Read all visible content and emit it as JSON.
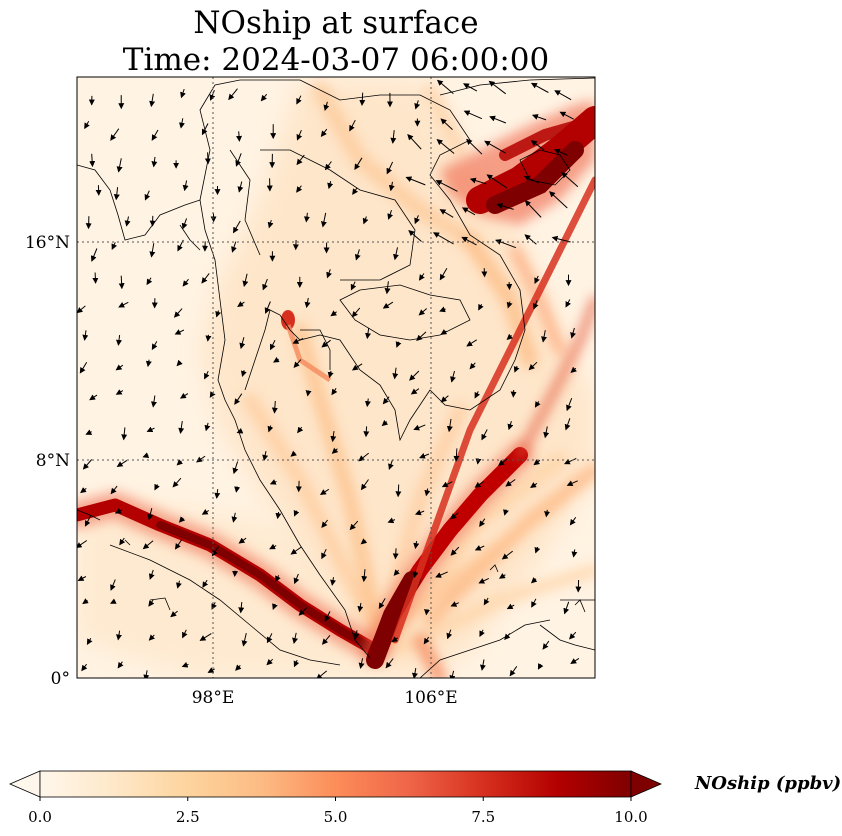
{
  "figure": {
    "title_line1": "NOship at surface",
    "title_line2": "Time: 2024-03-07 06:00:00"
  },
  "map": {
    "lat_ticks": [
      "16°N",
      "8°N",
      "0°"
    ],
    "lon_ticks": [
      "98°E",
      "106°E"
    ],
    "lat_tick_values": [
      16,
      8,
      0
    ],
    "lon_tick_values": [
      98,
      106
    ],
    "lon_range": [
      93,
      112
    ],
    "lat_range": [
      0,
      22
    ],
    "gridlines": "dotted"
  },
  "colorbar": {
    "label": "NOship (ppbv)",
    "tick_labels": [
      "0.0",
      "2.5",
      "5.0",
      "7.5",
      "10.0"
    ],
    "range": [
      0,
      10
    ],
    "extend": "both",
    "colormap": "OrRd",
    "colors": [
      "#fff7ec",
      "#fee8c8",
      "#fdd49e",
      "#fdbb84",
      "#fc8d59",
      "#ef6548",
      "#d7301f",
      "#b30000",
      "#7f0000"
    ]
  }
}
